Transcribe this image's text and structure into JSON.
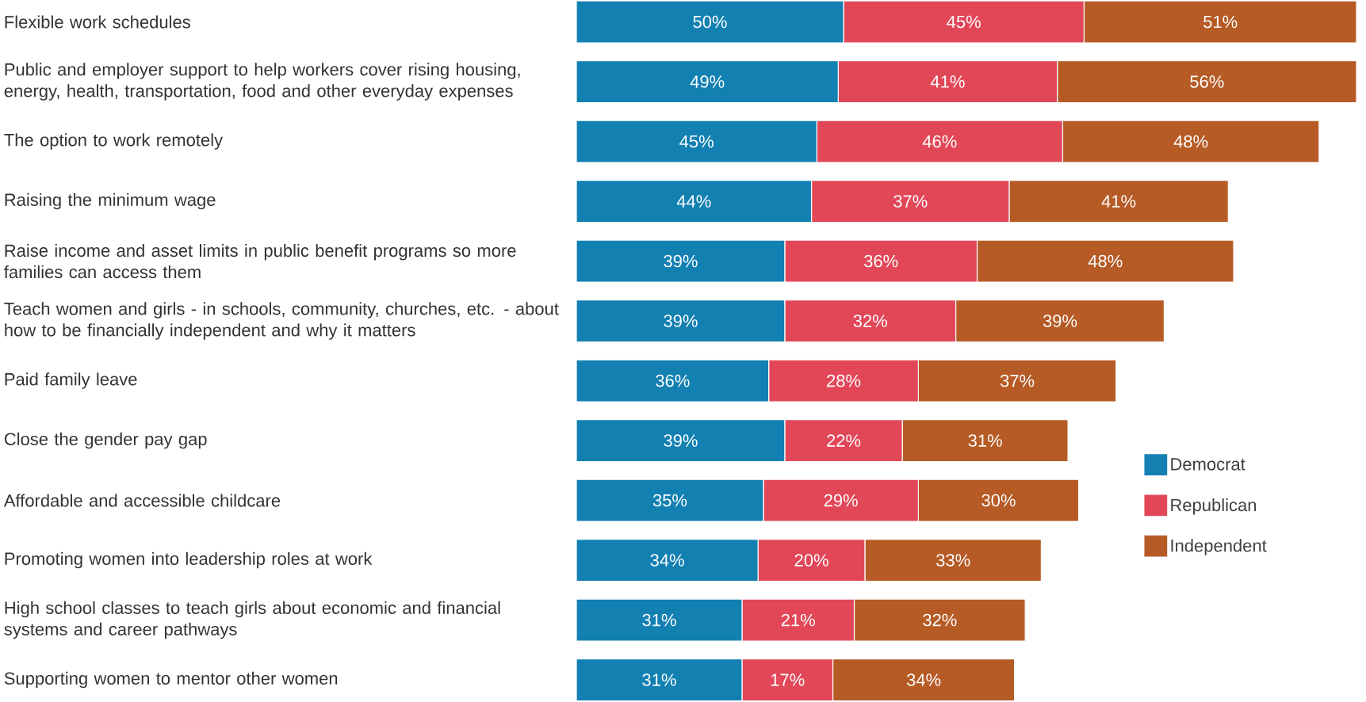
{
  "chart_data": {
    "type": "bar",
    "orientation": "horizontal",
    "stacked": true,
    "legend": "right",
    "categories": [
      "Flexible work schedules",
      "Public and employer support to help workers cover rising housing, energy, health, transportation, food and other everyday expenses",
      "The option to work remotely",
      "Raising the minimum wage",
      "Raise income and asset limits in public benefit programs so more families can access them",
      "Teach women and girls - in schools, community, churches, etc. - about how to be financially independent and why it matters",
      "Paid family leave",
      "Close the gender pay gap",
      "Affordable and accessible childcare",
      "Promoting women into leadership roles at work",
      "High school classes to teach girls about economic and financial systems and career pathways",
      "Supporting women to mentor other women"
    ],
    "series": [
      {
        "name": "Democrat",
        "color": "#1380b2",
        "values": [
          50,
          49,
          45,
          44,
          39,
          39,
          36,
          39,
          35,
          34,
          31,
          31
        ],
        "value_labels": [
          "50%",
          "49%",
          "45%",
          "44%",
          "39%",
          "39%",
          "36%",
          "39%",
          "35%",
          "34%",
          "31%",
          "31%"
        ]
      },
      {
        "name": "Republican",
        "color": "#e24758",
        "values": [
          45,
          41,
          46,
          37,
          36,
          32,
          28,
          22,
          29,
          20,
          21,
          17
        ],
        "value_labels": [
          "45%",
          "41%",
          "46%",
          "37%",
          "36%",
          "32%",
          "28%",
          "22%",
          "29%",
          "20%",
          "21%",
          "17%"
        ]
      },
      {
        "name": "Independent",
        "color": "#b65b25",
        "values": [
          51,
          56,
          48,
          41,
          48,
          39,
          37,
          31,
          30,
          33,
          32,
          34
        ],
        "value_labels": [
          "51%",
          "56%",
          "48%",
          "41%",
          "48%",
          "39%",
          "37%",
          "31%",
          "30%",
          "33%",
          "32%",
          "34%"
        ]
      }
    ]
  }
}
